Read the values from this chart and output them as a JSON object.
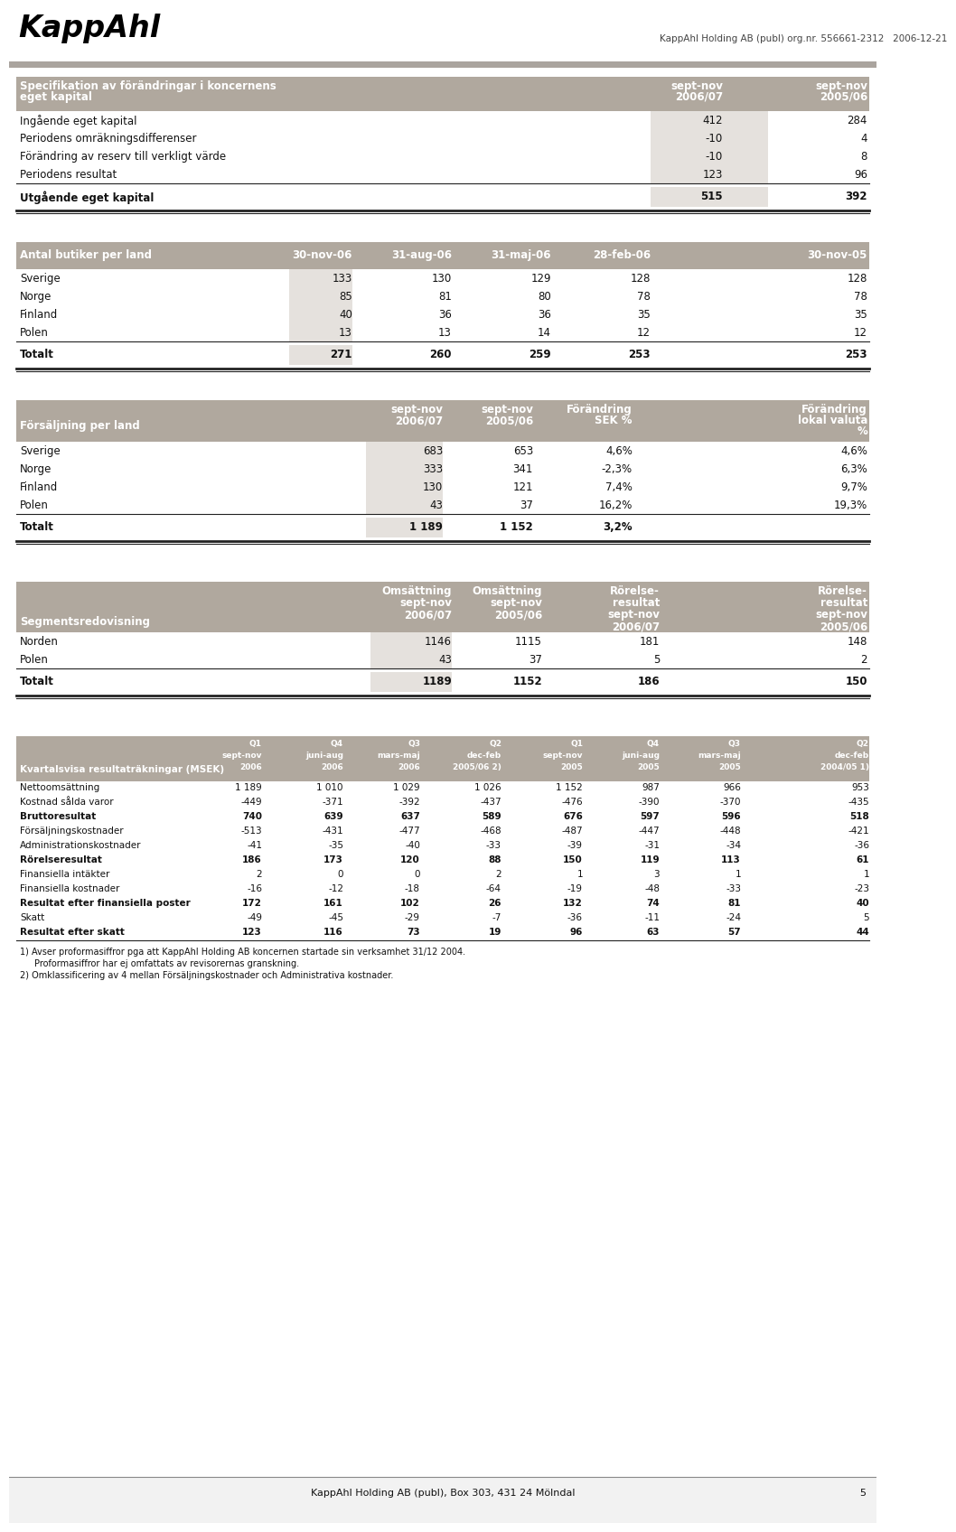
{
  "bg_color": "#ffffff",
  "header_bg": "#b0a89e",
  "light_cell_bg": "#e5e1dd",
  "logo_text": "KappAhl",
  "header_line": "KappAhl Holding AB (publ) org.nr. 556661-2312   2006-12-21",
  "table1_rows": [
    [
      "Ingående eget kapital",
      "412",
      "284"
    ],
    [
      "Periodens omräkningsdifferenser",
      "-10",
      "4"
    ],
    [
      "Förändring av reserv till verkligt värde",
      "-10",
      "8"
    ],
    [
      "Periodens resultat",
      "123",
      "96"
    ]
  ],
  "table1_total": [
    "Utgående eget kapital",
    "515",
    "392"
  ],
  "table2_cols": [
    "30-nov-06",
    "31-aug-06",
    "31-maj-06",
    "28-feb-06",
    "30-nov-05"
  ],
  "table2_rows": [
    [
      "Sverige",
      "133",
      "130",
      "129",
      "128",
      "128"
    ],
    [
      "Norge",
      "85",
      "81",
      "80",
      "78",
      "78"
    ],
    [
      "Finland",
      "40",
      "36",
      "36",
      "35",
      "35"
    ],
    [
      "Polen",
      "13",
      "13",
      "14",
      "12",
      "12"
    ]
  ],
  "table2_total": [
    "Totalt",
    "271",
    "260",
    "259",
    "253",
    "253"
  ],
  "table3_rows": [
    [
      "Sverige",
      "683",
      "653",
      "4,6%",
      "4,6%"
    ],
    [
      "Norge",
      "333",
      "341",
      "-2,3%",
      "6,3%"
    ],
    [
      "Finland",
      "130",
      "121",
      "7,4%",
      "9,7%"
    ],
    [
      "Polen",
      "43",
      "37",
      "16,2%",
      "19,3%"
    ]
  ],
  "table3_total": [
    "Totalt",
    "1 189",
    "1 152",
    "3,2%",
    ""
  ],
  "table4_rows": [
    [
      "Norden",
      "1146",
      "1115",
      "181",
      "148"
    ],
    [
      "Polen",
      "43",
      "37",
      "5",
      "2"
    ]
  ],
  "table4_total": [
    "Totalt",
    "1189",
    "1152",
    "186",
    "150"
  ],
  "table5_rows": [
    [
      "Nettoomsättning",
      "1 189",
      "1 010",
      "1 029",
      "1 026",
      "1 152",
      "987",
      "966",
      "953"
    ],
    [
      "Kostnad sålda varor",
      "-449",
      "-371",
      "-392",
      "-437",
      "-476",
      "-390",
      "-370",
      "-435"
    ],
    [
      "Bruttoresultat",
      "740",
      "639",
      "637",
      "589",
      "676",
      "597",
      "596",
      "518"
    ],
    [
      "Försäljningskostnader",
      "-513",
      "-431",
      "-477",
      "-468",
      "-487",
      "-447",
      "-448",
      "-421"
    ],
    [
      "Administrationskostnader",
      "-41",
      "-35",
      "-40",
      "-33",
      "-39",
      "-31",
      "-34",
      "-36"
    ],
    [
      "Rörelseresultat",
      "186",
      "173",
      "120",
      "88",
      "150",
      "119",
      "113",
      "61"
    ],
    [
      "Finansiella intäkter",
      "2",
      "0",
      "0",
      "2",
      "1",
      "3",
      "1",
      "1"
    ],
    [
      "Finansiella kostnader",
      "-16",
      "-12",
      "-18",
      "-64",
      "-19",
      "-48",
      "-33",
      "-23"
    ],
    [
      "Resultat efter finansiella poster",
      "172",
      "161",
      "102",
      "26",
      "132",
      "74",
      "81",
      "40"
    ],
    [
      "Skatt",
      "-49",
      "-45",
      "-29",
      "-7",
      "-36",
      "-11",
      "-24",
      "5"
    ],
    [
      "Resultat efter skatt",
      "123",
      "116",
      "73",
      "19",
      "96",
      "63",
      "57",
      "44"
    ]
  ],
  "table5_bold_rows": [
    2,
    5,
    8,
    10
  ],
  "footnote1": "1) Avser proformasiffror pga att KappAhl Holding AB koncernen startade sin verksamhet 31/12 2004.",
  "footnote2": "   Proformasiffror har ej omfattats av revisorernas granskning.",
  "footnote3": "2) Omklassificering av 4 mellan Försäljningskostnader och Administrativa kostnader.",
  "footer": "KappAhl Holding AB (publ), Box 303, 431 24 Mölndal"
}
